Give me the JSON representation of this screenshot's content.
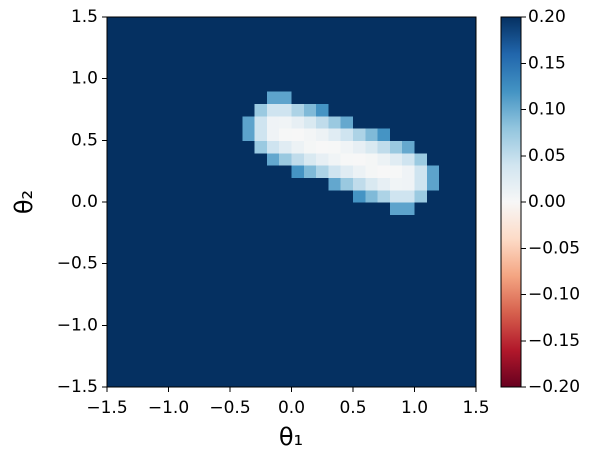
{
  "chart_data": {
    "type": "heatmap",
    "x_label": "θ₁",
    "y_label": "θ₂",
    "xlim": [
      -1.5,
      1.5
    ],
    "ylim": [
      -1.5,
      1.5
    ],
    "xticks": [
      {
        "value": -1.5,
        "label": "−1.5"
      },
      {
        "value": -1.0,
        "label": "−1.0"
      },
      {
        "value": -0.5,
        "label": "−0.5"
      },
      {
        "value": 0.0,
        "label": "0.0"
      },
      {
        "value": 0.5,
        "label": "0.5"
      },
      {
        "value": 1.0,
        "label": "1.0"
      },
      {
        "value": 1.5,
        "label": "1.5"
      }
    ],
    "yticks": [
      {
        "value": -1.5,
        "label": "−1.5"
      },
      {
        "value": -1.0,
        "label": "−1.0"
      },
      {
        "value": -0.5,
        "label": "−0.5"
      },
      {
        "value": 0.0,
        "label": "0.0"
      },
      {
        "value": 0.5,
        "label": "0.5"
      },
      {
        "value": 1.0,
        "label": "1.0"
      },
      {
        "value": 1.5,
        "label": "1.5"
      }
    ],
    "clim": [
      -0.2,
      0.2
    ],
    "cticks": [
      {
        "value": -0.2,
        "label": "−0.20"
      },
      {
        "value": -0.15,
        "label": "−0.15"
      },
      {
        "value": -0.1,
        "label": "−0.10"
      },
      {
        "value": -0.05,
        "label": "−0.05"
      },
      {
        "value": 0.0,
        "label": "0.00"
      },
      {
        "value": 0.05,
        "label": "0.05"
      },
      {
        "value": 0.1,
        "label": "0.10"
      },
      {
        "value": 0.15,
        "label": "0.15"
      },
      {
        "value": 0.2,
        "label": "0.20"
      }
    ],
    "colormap": [
      "#67001f",
      "#b2182b",
      "#d6604d",
      "#f4a582",
      "#fddbc7",
      "#f7f7f7",
      "#d1e5f0",
      "#92c5de",
      "#4393c3",
      "#2166ac",
      "#053061"
    ],
    "z": [
      [
        0.2,
        0.2,
        0.2,
        0.2,
        0.2,
        0.2,
        0.2,
        0.2,
        0.2,
        0.2,
        0.2,
        0.2,
        0.2,
        0.2,
        0.2,
        0.2,
        0.2,
        0.2,
        0.2,
        0.2,
        0.2,
        0.2,
        0.2,
        0.2,
        0.2,
        0.2,
        0.2,
        0.2,
        0.2,
        0.2
      ],
      [
        0.2,
        0.2,
        0.2,
        0.2,
        0.2,
        0.2,
        0.2,
        0.2,
        0.2,
        0.2,
        0.2,
        0.2,
        0.2,
        0.2,
        0.2,
        0.2,
        0.2,
        0.2,
        0.2,
        0.2,
        0.2,
        0.2,
        0.2,
        0.2,
        0.2,
        0.2,
        0.2,
        0.2,
        0.2,
        0.2
      ],
      [
        0.2,
        0.2,
        0.2,
        0.2,
        0.2,
        0.2,
        0.2,
        0.2,
        0.2,
        0.2,
        0.2,
        0.2,
        0.2,
        0.2,
        0.2,
        0.2,
        0.2,
        0.2,
        0.2,
        0.2,
        0.2,
        0.2,
        0.2,
        0.2,
        0.2,
        0.2,
        0.2,
        0.2,
        0.2,
        0.2
      ],
      [
        0.2,
        0.2,
        0.2,
        0.2,
        0.2,
        0.2,
        0.2,
        0.2,
        0.2,
        0.2,
        0.2,
        0.2,
        0.2,
        0.2,
        0.2,
        0.2,
        0.2,
        0.2,
        0.2,
        0.2,
        0.2,
        0.2,
        0.2,
        0.2,
        0.2,
        0.2,
        0.2,
        0.2,
        0.2,
        0.2
      ],
      [
        0.2,
        0.2,
        0.2,
        0.2,
        0.2,
        0.2,
        0.2,
        0.2,
        0.2,
        0.2,
        0.2,
        0.2,
        0.2,
        0.2,
        0.2,
        0.2,
        0.2,
        0.2,
        0.2,
        0.2,
        0.2,
        0.2,
        0.2,
        0.2,
        0.2,
        0.2,
        0.2,
        0.2,
        0.2,
        0.2
      ],
      [
        0.2,
        0.2,
        0.2,
        0.2,
        0.2,
        0.2,
        0.2,
        0.2,
        0.2,
        0.2,
        0.2,
        0.2,
        0.2,
        0.2,
        0.2,
        0.2,
        0.2,
        0.2,
        0.2,
        0.2,
        0.2,
        0.2,
        0.2,
        0.2,
        0.2,
        0.2,
        0.2,
        0.2,
        0.2,
        0.2
      ],
      [
        0.2,
        0.2,
        0.2,
        0.2,
        0.2,
        0.2,
        0.2,
        0.2,
        0.2,
        0.2,
        0.2,
        0.2,
        0.2,
        0.2,
        0.2,
        0.2,
        0.2,
        0.2,
        0.2,
        0.2,
        0.2,
        0.2,
        0.2,
        0.2,
        0.2,
        0.2,
        0.2,
        0.2,
        0.2,
        0.2
      ],
      [
        0.2,
        0.2,
        0.2,
        0.2,
        0.2,
        0.2,
        0.2,
        0.2,
        0.2,
        0.2,
        0.2,
        0.2,
        0.2,
        0.2,
        0.2,
        0.2,
        0.2,
        0.2,
        0.2,
        0.2,
        0.2,
        0.2,
        0.2,
        0.2,
        0.2,
        0.2,
        0.2,
        0.2,
        0.2,
        0.2
      ],
      [
        0.2,
        0.2,
        0.2,
        0.2,
        0.2,
        0.2,
        0.2,
        0.2,
        0.2,
        0.2,
        0.2,
        0.2,
        0.2,
        0.2,
        0.2,
        0.2,
        0.2,
        0.2,
        0.2,
        0.2,
        0.2,
        0.2,
        0.2,
        0.2,
        0.2,
        0.2,
        0.2,
        0.2,
        0.2,
        0.2
      ],
      [
        0.2,
        0.2,
        0.2,
        0.2,
        0.2,
        0.2,
        0.2,
        0.2,
        0.2,
        0.2,
        0.2,
        0.2,
        0.2,
        0.2,
        0.2,
        0.2,
        0.2,
        0.2,
        0.2,
        0.2,
        0.2,
        0.2,
        0.2,
        0.2,
        0.2,
        0.2,
        0.2,
        0.2,
        0.2,
        0.2
      ],
      [
        0.2,
        0.2,
        0.2,
        0.2,
        0.2,
        0.2,
        0.2,
        0.2,
        0.2,
        0.2,
        0.2,
        0.2,
        0.2,
        0.2,
        0.2,
        0.2,
        0.2,
        0.2,
        0.2,
        0.2,
        0.2,
        0.2,
        0.2,
        0.2,
        0.2,
        0.2,
        0.2,
        0.2,
        0.2,
        0.2
      ],
      [
        0.2,
        0.2,
        0.2,
        0.2,
        0.2,
        0.2,
        0.2,
        0.2,
        0.2,
        0.2,
        0.2,
        0.2,
        0.2,
        0.2,
        0.2,
        0.2,
        0.2,
        0.2,
        0.2,
        0.2,
        0.2,
        0.2,
        0.2,
        0.2,
        0.2,
        0.2,
        0.2,
        0.2,
        0.2,
        0.2
      ],
      [
        0.2,
        0.2,
        0.2,
        0.2,
        0.2,
        0.2,
        0.2,
        0.2,
        0.2,
        0.2,
        0.2,
        0.2,
        0.2,
        0.2,
        0.2,
        0.2,
        0.2,
        0.2,
        0.2,
        0.2,
        0.2,
        0.2,
        0.2,
        0.2,
        0.2,
        0.2,
        0.2,
        0.2,
        0.2,
        0.2
      ],
      [
        0.2,
        0.2,
        0.2,
        0.2,
        0.2,
        0.2,
        0.2,
        0.2,
        0.2,
        0.2,
        0.2,
        0.2,
        0.2,
        0.2,
        0.2,
        0.2,
        0.2,
        0.2,
        0.2,
        0.2,
        0.2,
        0.2,
        0.2,
        0.2,
        0.2,
        0.2,
        0.2,
        0.2,
        0.2,
        0.2
      ],
      [
        0.2,
        0.2,
        0.2,
        0.2,
        0.2,
        0.2,
        0.2,
        0.2,
        0.2,
        0.2,
        0.2,
        0.2,
        0.2,
        0.2,
        0.2,
        0.2,
        0.2,
        0.2,
        0.2,
        0.2,
        0.2,
        0.2,
        0.2,
        0.107,
        0.107,
        0.2,
        0.2,
        0.2,
        0.2,
        0.2
      ],
      [
        0.2,
        0.2,
        0.2,
        0.2,
        0.2,
        0.2,
        0.2,
        0.2,
        0.2,
        0.2,
        0.2,
        0.2,
        0.2,
        0.2,
        0.2,
        0.2,
        0.2,
        0.2,
        0.2,
        0.2,
        0.119,
        0.089,
        0.063,
        0.041,
        0.041,
        0.074,
        0.2,
        0.2,
        0.2,
        0.2
      ],
      [
        0.2,
        0.2,
        0.2,
        0.2,
        0.2,
        0.2,
        0.2,
        0.2,
        0.2,
        0.2,
        0.2,
        0.2,
        0.2,
        0.2,
        0.2,
        0.2,
        0.2,
        0.2,
        0.104,
        0.075,
        0.051,
        0.032,
        0.017,
        0.007,
        0.008,
        0.041,
        0.107,
        0.2,
        0.2,
        0.2
      ],
      [
        0.2,
        0.2,
        0.2,
        0.2,
        0.2,
        0.2,
        0.2,
        0.2,
        0.2,
        0.2,
        0.2,
        0.2,
        0.2,
        0.2,
        0.2,
        0.119,
        0.089,
        0.063,
        0.041,
        0.024,
        0.012,
        0.003,
        0,
        0.001,
        0.008,
        0.041,
        0.107,
        0.2,
        0.2,
        0.2
      ],
      [
        0.2,
        0.2,
        0.2,
        0.2,
        0.2,
        0.2,
        0.2,
        0.2,
        0.2,
        0.2,
        0.2,
        0.2,
        0.2,
        0.104,
        0.075,
        0.051,
        0.032,
        0.017,
        0.007,
        0.001,
        0,
        0.003,
        0.012,
        0.024,
        0.041,
        0.074,
        0.2,
        0.2,
        0.2,
        0.2
      ],
      [
        0.2,
        0.2,
        0.2,
        0.2,
        0.2,
        0.2,
        0.2,
        0.2,
        0.2,
        0.2,
        0.2,
        0.2,
        0.074,
        0.041,
        0.024,
        0.012,
        0.003,
        0,
        0.001,
        0.007,
        0.017,
        0.032,
        0.051,
        0.075,
        0.103,
        0.2,
        0.2,
        0.2,
        0.2,
        0.2
      ],
      [
        0.2,
        0.2,
        0.2,
        0.2,
        0.2,
        0.2,
        0.2,
        0.2,
        0.2,
        0.2,
        0.2,
        0.107,
        0.041,
        0.008,
        0.001,
        0,
        0.004,
        0.011,
        0.024,
        0.041,
        0.063,
        0.089,
        0.119,
        0.2,
        0.2,
        0.2,
        0.2,
        0.2,
        0.2,
        0.2
      ],
      [
        0.2,
        0.2,
        0.2,
        0.2,
        0.2,
        0.2,
        0.2,
        0.2,
        0.2,
        0.2,
        0.2,
        0.107,
        0.041,
        0.008,
        0.007,
        0.017,
        0.032,
        0.051,
        0.075,
        0.103,
        0.2,
        0.2,
        0.2,
        0.2,
        0.2,
        0.2,
        0.2,
        0.2,
        0.2,
        0.2
      ],
      [
        0.2,
        0.2,
        0.2,
        0.2,
        0.2,
        0.2,
        0.2,
        0.2,
        0.2,
        0.2,
        0.2,
        0.2,
        0.074,
        0.041,
        0.041,
        0.063,
        0.089,
        0.119,
        0.2,
        0.2,
        0.2,
        0.2,
        0.2,
        0.2,
        0.2,
        0.2,
        0.2,
        0.2,
        0.2,
        0.2
      ],
      [
        0.2,
        0.2,
        0.2,
        0.2,
        0.2,
        0.2,
        0.2,
        0.2,
        0.2,
        0.2,
        0.2,
        0.2,
        0.2,
        0.107,
        0.107,
        0.2,
        0.2,
        0.2,
        0.2,
        0.2,
        0.2,
        0.2,
        0.2,
        0.2,
        0.2,
        0.2,
        0.2,
        0.2,
        0.2,
        0.2
      ],
      [
        0.2,
        0.2,
        0.2,
        0.2,
        0.2,
        0.2,
        0.2,
        0.2,
        0.2,
        0.2,
        0.2,
        0.2,
        0.2,
        0.2,
        0.2,
        0.2,
        0.2,
        0.2,
        0.2,
        0.2,
        0.2,
        0.2,
        0.2,
        0.2,
        0.2,
        0.2,
        0.2,
        0.2,
        0.2,
        0.2
      ],
      [
        0.2,
        0.2,
        0.2,
        0.2,
        0.2,
        0.2,
        0.2,
        0.2,
        0.2,
        0.2,
        0.2,
        0.2,
        0.2,
        0.2,
        0.2,
        0.2,
        0.2,
        0.2,
        0.2,
        0.2,
        0.2,
        0.2,
        0.2,
        0.2,
        0.2,
        0.2,
        0.2,
        0.2,
        0.2,
        0.2
      ],
      [
        0.2,
        0.2,
        0.2,
        0.2,
        0.2,
        0.2,
        0.2,
        0.2,
        0.2,
        0.2,
        0.2,
        0.2,
        0.2,
        0.2,
        0.2,
        0.2,
        0.2,
        0.2,
        0.2,
        0.2,
        0.2,
        0.2,
        0.2,
        0.2,
        0.2,
        0.2,
        0.2,
        0.2,
        0.2,
        0.2
      ],
      [
        0.2,
        0.2,
        0.2,
        0.2,
        0.2,
        0.2,
        0.2,
        0.2,
        0.2,
        0.2,
        0.2,
        0.2,
        0.2,
        0.2,
        0.2,
        0.2,
        0.2,
        0.2,
        0.2,
        0.2,
        0.2,
        0.2,
        0.2,
        0.2,
        0.2,
        0.2,
        0.2,
        0.2,
        0.2,
        0.2
      ],
      [
        0.2,
        0.2,
        0.2,
        0.2,
        0.2,
        0.2,
        0.2,
        0.2,
        0.2,
        0.2,
        0.2,
        0.2,
        0.2,
        0.2,
        0.2,
        0.2,
        0.2,
        0.2,
        0.2,
        0.2,
        0.2,
        0.2,
        0.2,
        0.2,
        0.2,
        0.2,
        0.2,
        0.2,
        0.2,
        0.2
      ],
      [
        0.2,
        0.2,
        0.2,
        0.2,
        0.2,
        0.2,
        0.2,
        0.2,
        0.2,
        0.2,
        0.2,
        0.2,
        0.2,
        0.2,
        0.2,
        0.2,
        0.2,
        0.2,
        0.2,
        0.2,
        0.2,
        0.2,
        0.2,
        0.2,
        0.2,
        0.2,
        0.2,
        0.2,
        0.2,
        0.2
      ]
    ]
  }
}
